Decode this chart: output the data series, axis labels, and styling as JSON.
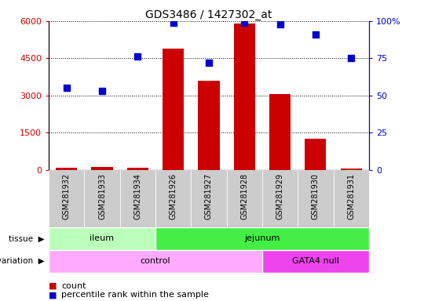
{
  "title": "GDS3486 / 1427302_at",
  "samples": [
    "GSM281932",
    "GSM281933",
    "GSM281934",
    "GSM281926",
    "GSM281927",
    "GSM281928",
    "GSM281929",
    "GSM281930",
    "GSM281931"
  ],
  "counts": [
    80,
    120,
    90,
    4900,
    3600,
    5900,
    3050,
    1250,
    60
  ],
  "percentile_ranks": [
    55,
    53,
    76,
    99,
    72,
    99,
    98,
    91,
    75
  ],
  "ylim_left": [
    0,
    6000
  ],
  "ylim_right": [
    0,
    100
  ],
  "yticks_left": [
    0,
    1500,
    3000,
    4500,
    6000
  ],
  "yticks_right": [
    0,
    25,
    50,
    75,
    100
  ],
  "ytick_labels_left": [
    "0",
    "1500",
    "3000",
    "4500",
    "6000"
  ],
  "ytick_labels_right": [
    "0",
    "25",
    "50",
    "75",
    "100%"
  ],
  "bar_color": "#cc0000",
  "dot_color": "#0000cc",
  "ileum_color": "#bbffbb",
  "jejunum_color": "#44ee44",
  "control_color": "#ffaaff",
  "gata4_color": "#ee44ee",
  "bg_color": "#ffffff",
  "tick_color_left": "#cc0000",
  "tick_color_right": "#0000cc",
  "xtick_bg_color": "#cccccc",
  "ileum_count": 3,
  "jejunum_count": 6,
  "control_count": 6,
  "gata4_count": 3
}
